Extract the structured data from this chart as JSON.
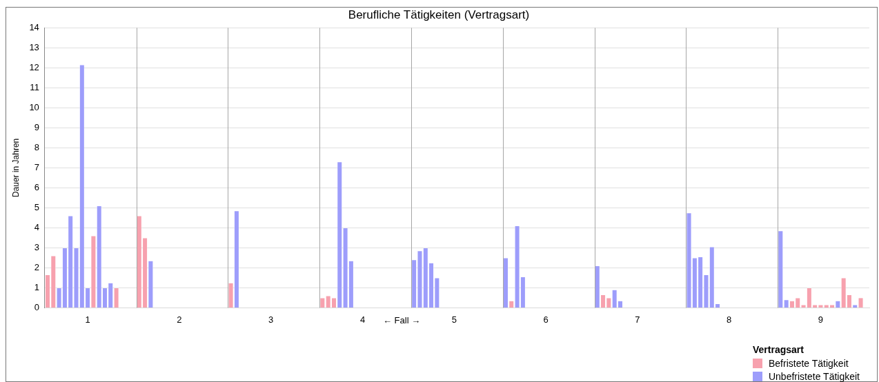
{
  "chart_data": {
    "type": "bar",
    "title": "Berufliche Tätigkeiten (Vertragsart)",
    "xlabel": "← Fall →",
    "ylabel": "Dauer in Jahren",
    "legend_title": "Vertragsart",
    "stacked": true,
    "categories": [
      null,
      null,
      null,
      null,
      null,
      null,
      null,
      "1",
      null,
      null,
      null,
      null,
      null,
      null,
      null,
      null,
      null,
      null,
      null,
      null,
      null,
      null,
      null,
      "2",
      null,
      null,
      null,
      null,
      null,
      null,
      null,
      null,
      null,
      null,
      null,
      null,
      null,
      null,
      null,
      "3",
      null,
      null,
      null,
      null,
      null,
      null,
      null,
      null,
      null,
      null,
      null,
      null,
      null,
      null,
      null,
      "4",
      null,
      null,
      null,
      null,
      null,
      null,
      null,
      null,
      null,
      null,
      null,
      null,
      null,
      null,
      null,
      "5",
      null,
      null,
      null,
      null,
      null,
      null,
      null,
      null,
      null,
      null,
      null,
      null,
      null,
      null,
      null,
      "6",
      null,
      null,
      null,
      null,
      null,
      null,
      null,
      null,
      null,
      null,
      null,
      null,
      null,
      null,
      null,
      "7",
      null,
      null,
      null,
      null,
      null,
      null,
      null,
      null,
      null,
      null,
      null,
      null,
      null,
      null,
      null,
      "8",
      null,
      null,
      null,
      null,
      null,
      null,
      null,
      null,
      null,
      null,
      null,
      null,
      null,
      null,
      null,
      "9",
      null,
      null,
      null,
      null,
      null,
      null,
      null,
      null
    ],
    "series": [
      {
        "name": "Befristete Tätigkeit",
        "color": "#f7a1ae",
        "values": [
          1.65,
          2.6,
          null,
          null,
          null,
          null,
          null,
          null,
          3.6,
          null,
          null,
          null,
          1,
          null,
          null,
          null,
          4.6,
          3.5,
          null,
          null,
          null,
          null,
          null,
          null,
          null,
          null,
          null,
          null,
          null,
          null,
          null,
          null,
          1.25,
          null,
          null,
          null,
          null,
          null,
          null,
          null,
          null,
          null,
          null,
          null,
          null,
          null,
          null,
          null,
          0.5,
          0.6,
          0.5,
          null,
          null,
          null,
          null,
          null,
          null,
          null,
          null,
          null,
          null,
          null,
          null,
          null,
          null,
          null,
          null,
          null,
          null,
          null,
          null,
          null,
          null,
          null,
          null,
          null,
          null,
          null,
          null,
          null,
          null,
          0.35,
          null,
          null,
          null,
          null,
          null,
          null,
          null,
          null,
          null,
          null,
          null,
          null,
          null,
          null,
          null,
          0.65,
          0.5,
          null,
          null,
          null,
          null,
          null,
          null,
          null,
          null,
          null,
          null,
          null,
          null,
          null,
          null,
          null,
          null,
          null,
          null,
          null,
          null,
          null,
          null,
          null,
          null,
          null,
          null,
          null,
          null,
          null,
          null,
          null,
          0.35,
          0.5,
          0.15,
          1,
          0.15,
          0.15,
          0.15,
          0.15,
          null,
          1.5,
          0.65,
          null,
          0.5,
          null
        ]
      },
      {
        "name": "Unbefristete Tätigkeit",
        "color": "#9d9dfb",
        "values": [
          null,
          null,
          1,
          3,
          4.6,
          3,
          12.15,
          1,
          null,
          5.1,
          1,
          1.25,
          null,
          null,
          null,
          null,
          null,
          null,
          2.35,
          null,
          null,
          null,
          null,
          null,
          null,
          null,
          null,
          null,
          null,
          null,
          null,
          null,
          null,
          4.85,
          null,
          null,
          null,
          null,
          null,
          null,
          null,
          null,
          null,
          null,
          null,
          null,
          null,
          null,
          null,
          null,
          null,
          7.3,
          4,
          2.35,
          null,
          null,
          null,
          null,
          null,
          null,
          null,
          null,
          null,
          null,
          2.4,
          2.85,
          3,
          2.25,
          1.5,
          null,
          null,
          null,
          null,
          null,
          null,
          null,
          null,
          null,
          null,
          null,
          2.5,
          null,
          4.1,
          1.55,
          null,
          null,
          null,
          null,
          null,
          null,
          null,
          null,
          null,
          null,
          null,
          null,
          2.1,
          null,
          null,
          0.9,
          0.35,
          null,
          null,
          null,
          null,
          null,
          null,
          null,
          null,
          null,
          null,
          null,
          4.75,
          2.5,
          2.55,
          1.65,
          3.05,
          0.2,
          null,
          null,
          null,
          null,
          null,
          null,
          null,
          null,
          null,
          null,
          3.85,
          0.4,
          null,
          null,
          null,
          null,
          null,
          null,
          null,
          null,
          0.35,
          null,
          null,
          0.15,
          null,
          null
        ]
      }
    ],
    "ylim": [
      0,
      14
    ],
    "yticks": [
      0,
      1,
      2,
      3,
      4,
      5,
      6,
      7,
      8,
      9,
      10,
      11,
      12,
      13,
      14
    ],
    "grid": "y",
    "legend": "bottom right"
  }
}
